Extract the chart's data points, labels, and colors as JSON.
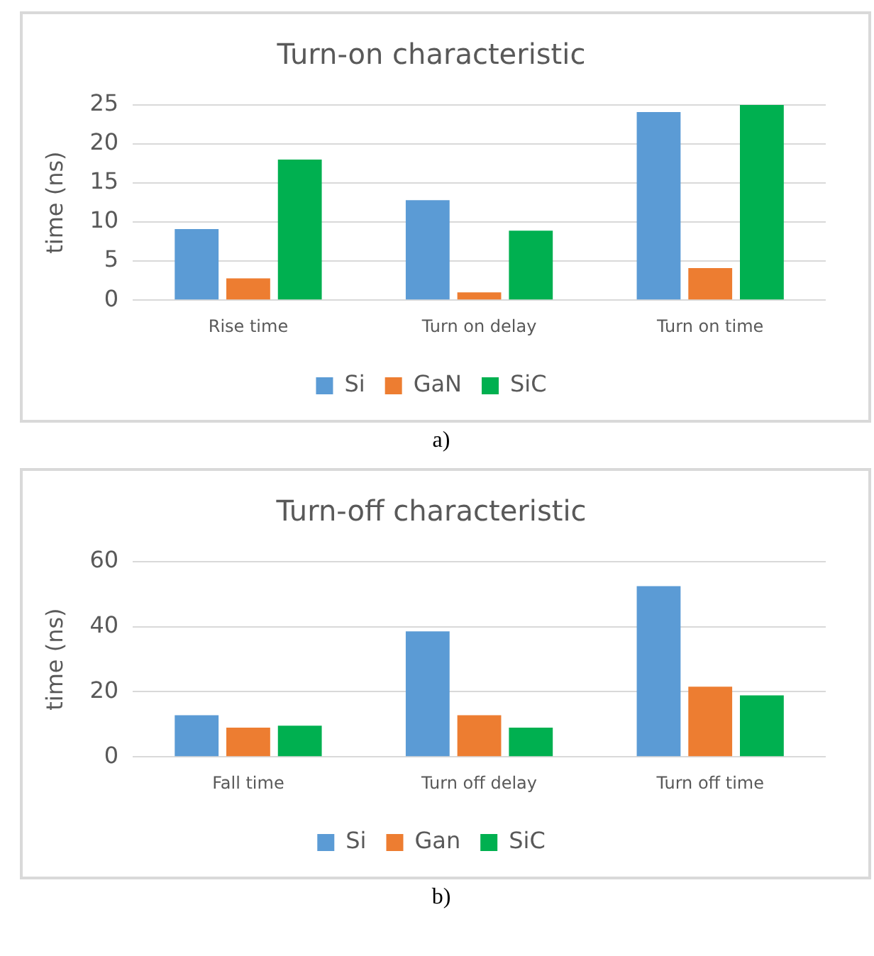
{
  "chart_data": [
    {
      "type": "bar",
      "title": "Turn-on characteristic",
      "ylabel": "time (ns)",
      "categories": [
        "Rise time",
        "Turn on delay",
        "Turn on time"
      ],
      "series": [
        {
          "name": "Si",
          "color": "#5b9bd5",
          "values": [
            9.1,
            12.8,
            24.1
          ]
        },
        {
          "name": "GaN",
          "color": "#ed7d31",
          "values": [
            2.8,
            1.0,
            4.1
          ]
        },
        {
          "name": "SiC",
          "color": "#00b050",
          "values": [
            18.0,
            8.9,
            25.0
          ]
        }
      ],
      "ylim": [
        0,
        25
      ],
      "yticks": [
        0,
        5,
        10,
        15,
        20,
        25
      ],
      "grid": "y",
      "legend": "bottom",
      "annotations": [
        "a)"
      ]
    },
    {
      "type": "bar",
      "title": "Turn-off characteristic",
      "ylabel": "time (ns)",
      "categories": [
        "Fall time",
        "Turn off delay",
        "Turn off time"
      ],
      "series": [
        {
          "name": "Si",
          "color": "#5b9bd5",
          "values": [
            12.8,
            38.6,
            52.5
          ]
        },
        {
          "name": "Gan",
          "color": "#ed7d31",
          "values": [
            9.0,
            12.8,
            21.6
          ]
        },
        {
          "name": "SiC",
          "color": "#00b050",
          "values": [
            9.6,
            9.0,
            18.9
          ]
        }
      ],
      "ylim": [
        0,
        60
      ],
      "yticks": [
        0,
        20,
        40,
        60
      ],
      "grid": "y",
      "legend": "bottom",
      "annotations": [
        "b)"
      ]
    }
  ]
}
